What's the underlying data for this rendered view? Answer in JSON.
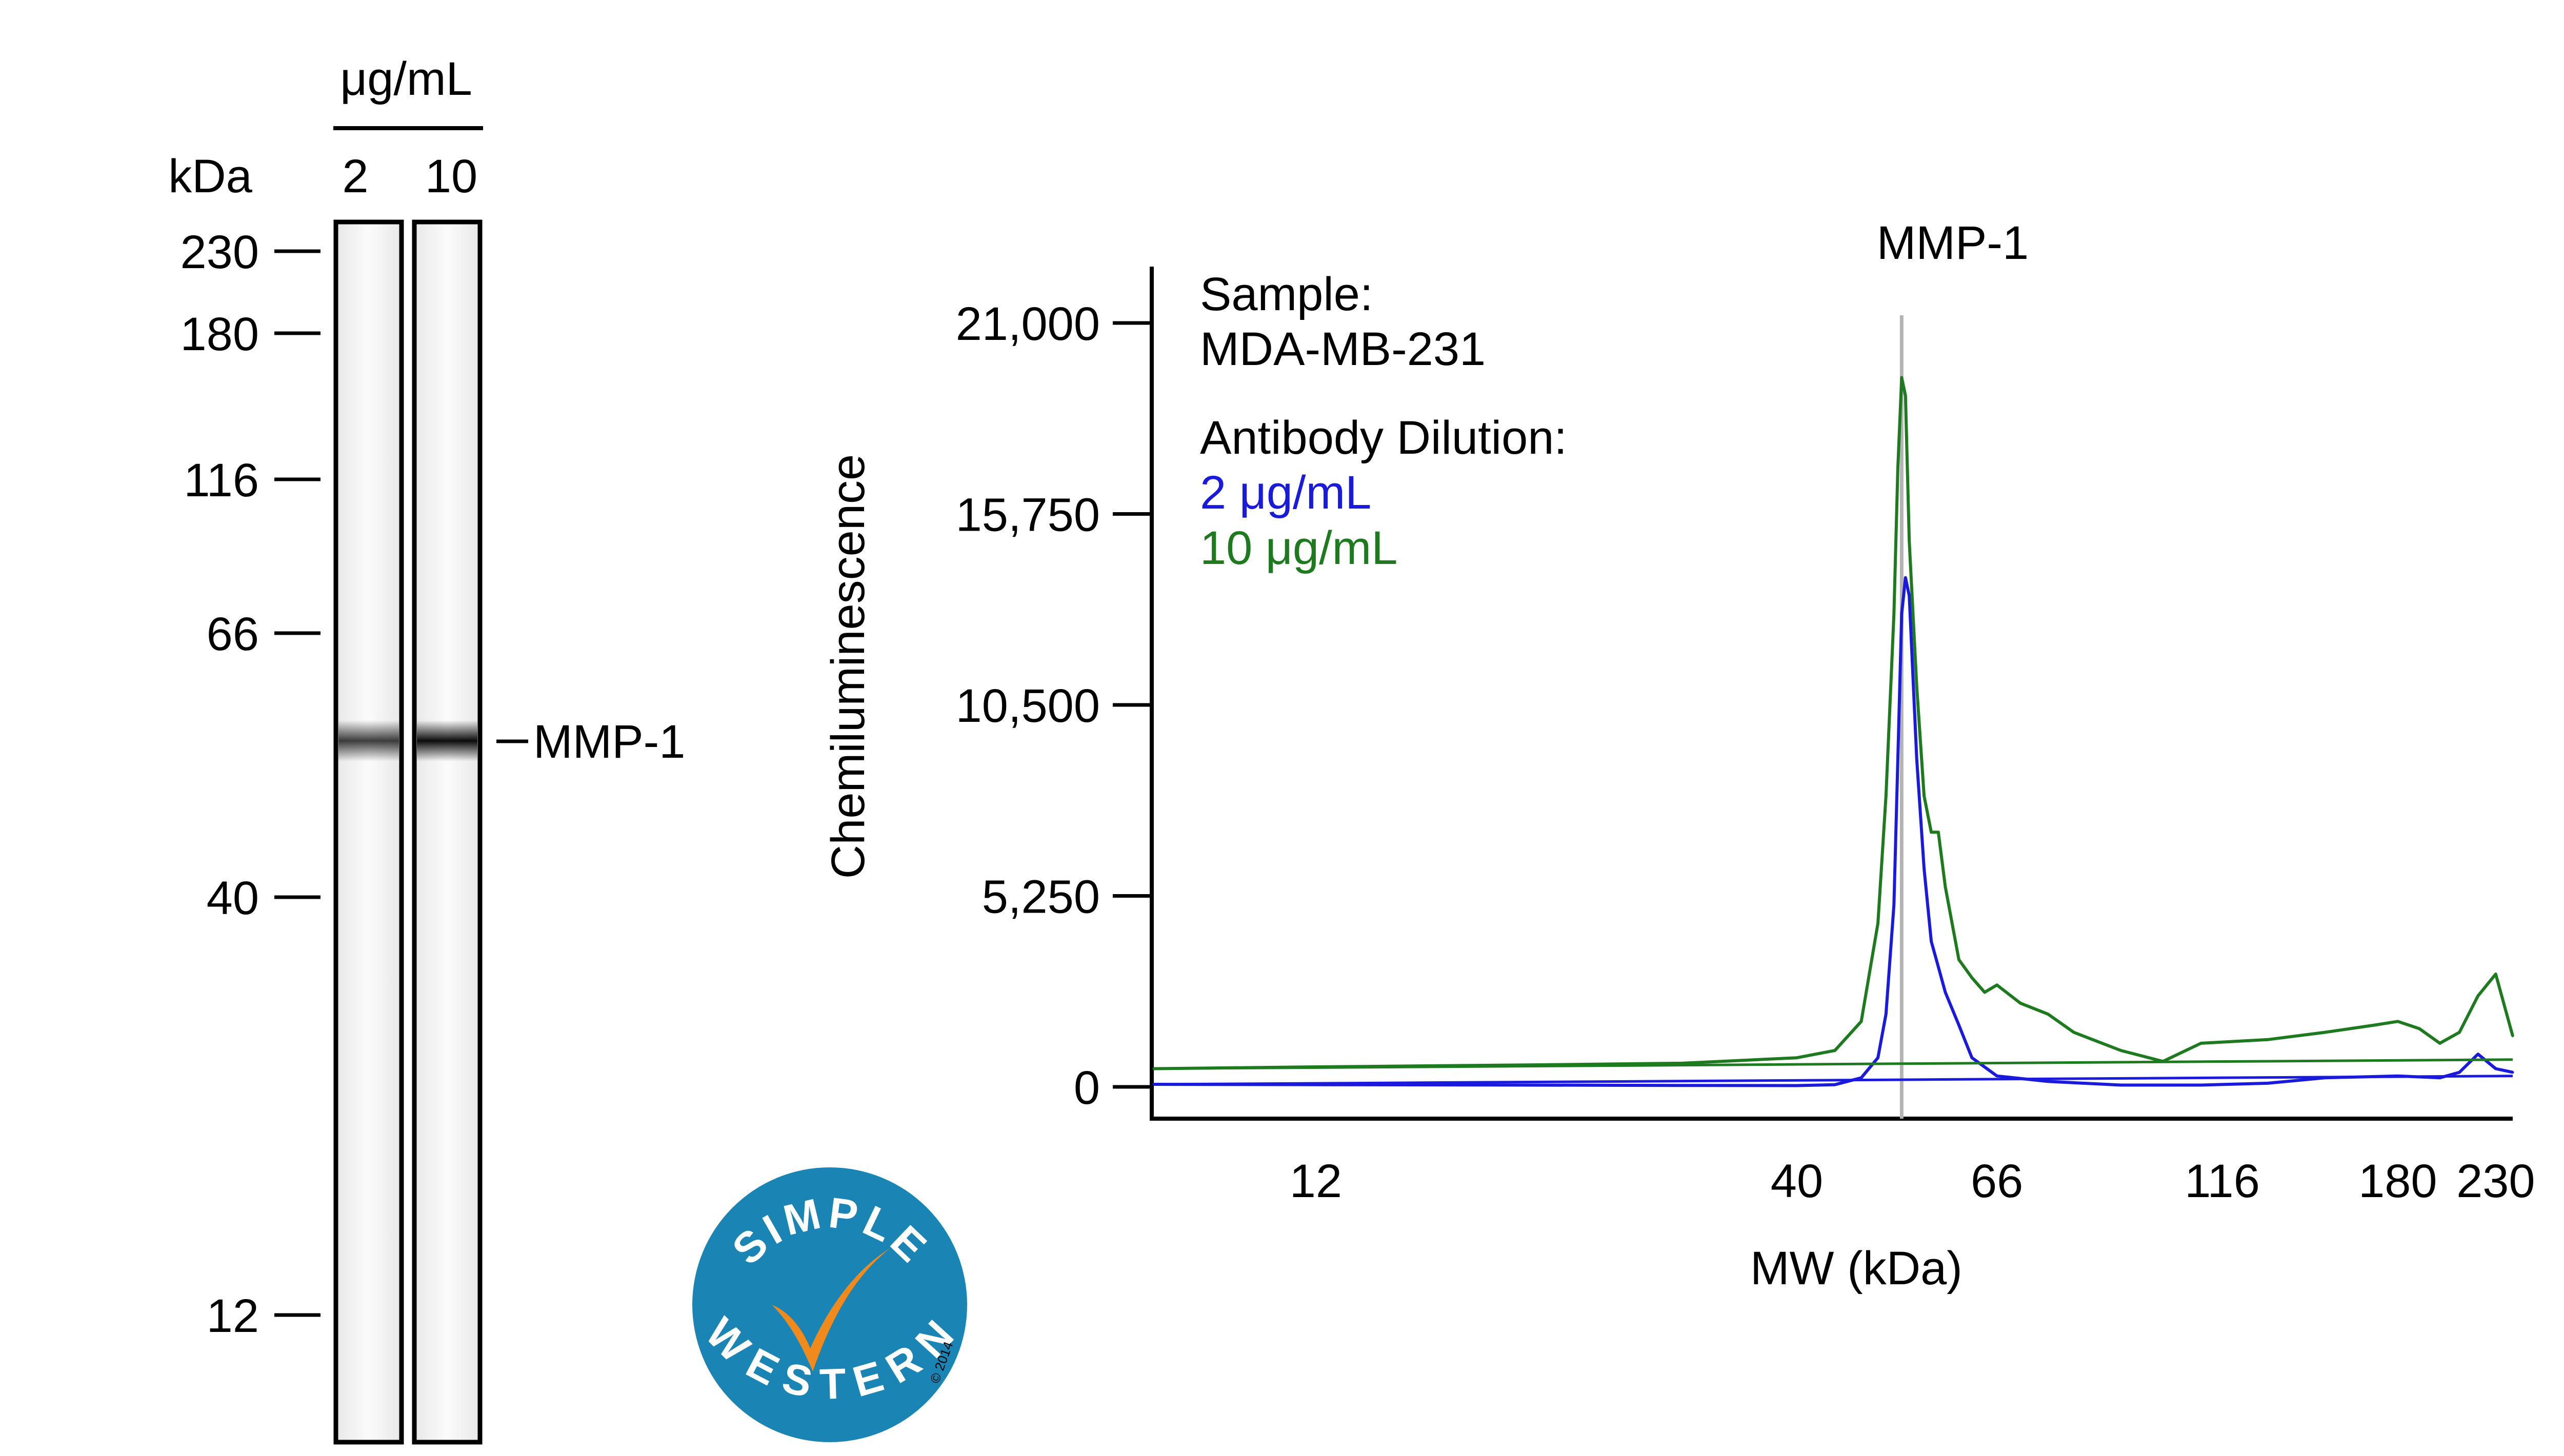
{
  "blot": {
    "unit_label": "μg/mL",
    "kda_label": "kDa",
    "lanes": [
      {
        "label": "2",
        "band_intensity": 0.75
      },
      {
        "label": "10",
        "band_intensity": 0.95
      }
    ],
    "band_kda": 52,
    "band_label": "MMP-1",
    "markers": [
      "230",
      "180",
      "116",
      "66",
      "40",
      "12"
    ]
  },
  "logo": {
    "top_text": "SIMPLE",
    "bottom_text": "WESTERN",
    "copyright": "© 2014",
    "colors": {
      "circle": "#1a84b4",
      "check": "#f08a1c",
      "text": "#ffffff"
    }
  },
  "chart_data": {
    "type": "line",
    "title": "MMP-1",
    "xlabel": "MW (kDa)",
    "ylabel": "Chemiluminescence",
    "x_scale": "log",
    "x_ticks": [
      "12",
      "40",
      "66",
      "116",
      "180",
      "230"
    ],
    "y_ticks": [
      "0",
      "5,250",
      "10,500",
      "15,750",
      "21,000"
    ],
    "ylim": [
      0,
      22000
    ],
    "xlim": [
      8,
      240
    ],
    "peak_marker_kda": 52,
    "legend": {
      "sample_title": "Sample:",
      "sample_name": "MDA-MB-231",
      "dilution_title": "Antibody Dilution:"
    },
    "series": [
      {
        "name": "2 μg/mL",
        "color": "#1a1adc",
        "x": [
          8,
          12,
          20,
          30,
          40,
          44,
          47,
          49,
          50,
          51,
          51.5,
          52,
          52.5,
          53,
          54,
          55,
          56,
          57,
          58,
          60,
          62,
          66,
          75,
          90,
          110,
          130,
          150,
          180,
          200,
          210,
          220,
          230,
          240
        ],
        "y": [
          70,
          60,
          50,
          40,
          35,
          60,
          250,
          800,
          2000,
          5000,
          9000,
          13000,
          14000,
          13500,
          9000,
          6000,
          4000,
          3300,
          2600,
          1700,
          800,
          300,
          150,
          50,
          50,
          100,
          250,
          300,
          250,
          400,
          900,
          500,
          400
        ]
      },
      {
        "name": "10 μg/mL",
        "color": "#1e7a1e",
        "x": [
          8,
          12,
          20,
          30,
          40,
          44,
          47,
          49,
          50,
          51,
          51.5,
          52,
          52.5,
          53,
          54,
          55,
          56,
          57,
          58,
          60,
          62,
          64,
          66,
          70,
          75,
          80,
          90,
          100,
          110,
          130,
          150,
          170,
          180,
          190,
          200,
          210,
          220,
          230,
          240
        ],
        "y": [
          500,
          550,
          600,
          650,
          800,
          1000,
          1800,
          4500,
          8000,
          13000,
          17000,
          19500,
          19000,
          15000,
          11000,
          8000,
          7000,
          7000,
          5500,
          3500,
          3000,
          2600,
          2800,
          2300,
          2000,
          1500,
          1000,
          700,
          1200,
          1300,
          1500,
          1700,
          1800,
          1600,
          1200,
          1500,
          2500,
          3100,
          1400
        ]
      }
    ]
  }
}
